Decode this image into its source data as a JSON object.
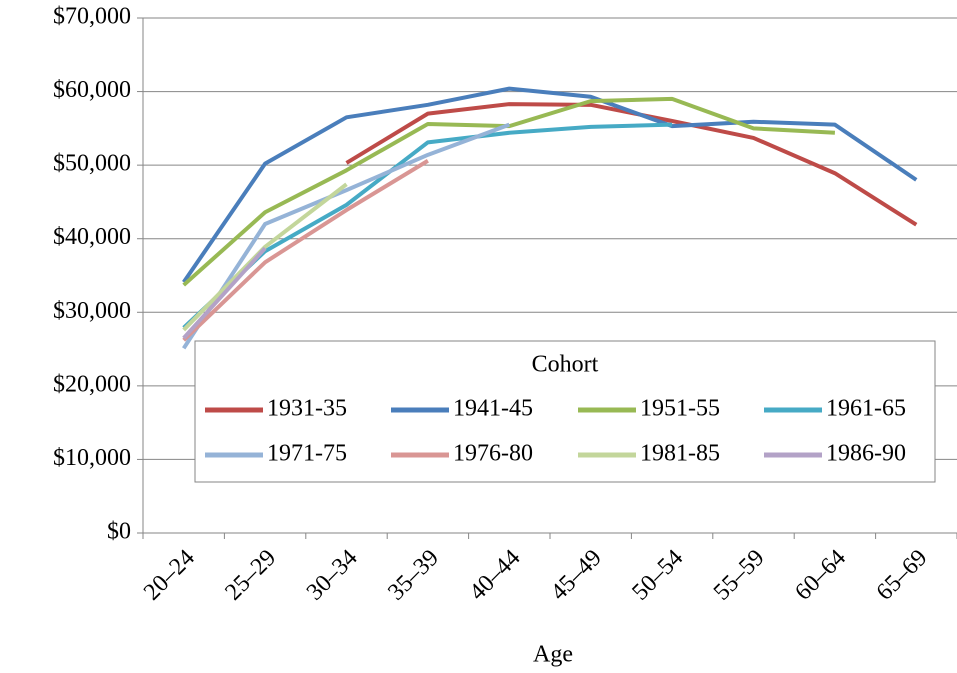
{
  "chart_data": {
    "type": "line",
    "x_label": "Age",
    "legend_title": "Cohort",
    "legend_position": "center",
    "categories": [
      "20–24",
      "25–29",
      "30–34",
      "35–39",
      "40–44",
      "45–49",
      "50–54",
      "55–59",
      "60–64",
      "65–69"
    ],
    "series": [
      {
        "name": "1931-35",
        "color": "#be4b48",
        "values": [
          null,
          null,
          50300,
          57000,
          58300,
          58200,
          56000,
          53700,
          48900,
          41900
        ]
      },
      {
        "name": "1941-45",
        "color": "#4a7ebb",
        "values": [
          34100,
          50200,
          56500,
          58200,
          60400,
          59300,
          55300,
          55900,
          55500,
          48000
        ]
      },
      {
        "name": "1951-55",
        "color": "#98b954",
        "values": [
          33700,
          43600,
          49300,
          55600,
          55300,
          58700,
          59000,
          55000,
          54400,
          null
        ]
      },
      {
        "name": "1961-65",
        "color": "#46aac5",
        "values": [
          27900,
          38300,
          44600,
          53100,
          54400,
          55200,
          55500,
          null,
          null,
          null
        ]
      },
      {
        "name": "1971-75",
        "color": "#95b3d7",
        "values": [
          25100,
          42000,
          46600,
          51400,
          55500,
          null,
          null,
          null,
          null,
          null
        ]
      },
      {
        "name": "1976-80",
        "color": "#d99694",
        "values": [
          26200,
          36800,
          43900,
          50600,
          null,
          null,
          null,
          null,
          null,
          null
        ]
      },
      {
        "name": "1981-85",
        "color": "#c3d69b",
        "values": [
          27600,
          38900,
          47400,
          null,
          null,
          null,
          null,
          null,
          null,
          null
        ]
      },
      {
        "name": "1986-90",
        "color": "#b3a2c7",
        "values": [
          26500,
          38700,
          null,
          null,
          null,
          null,
          null,
          null,
          null,
          null
        ]
      }
    ],
    "ylim": [
      0,
      70000
    ],
    "yticks": [
      {
        "value": 0,
        "label": "$0"
      },
      {
        "value": 10000,
        "label": "$10,000"
      },
      {
        "value": 20000,
        "label": "$20,000"
      },
      {
        "value": 30000,
        "label": "$30,000"
      },
      {
        "value": 40000,
        "label": "$40,000"
      },
      {
        "value": 50000,
        "label": "$50,000"
      },
      {
        "value": 60000,
        "label": "$60,000"
      },
      {
        "value": 70000,
        "label": "$70,000"
      }
    ],
    "grid": true
  }
}
